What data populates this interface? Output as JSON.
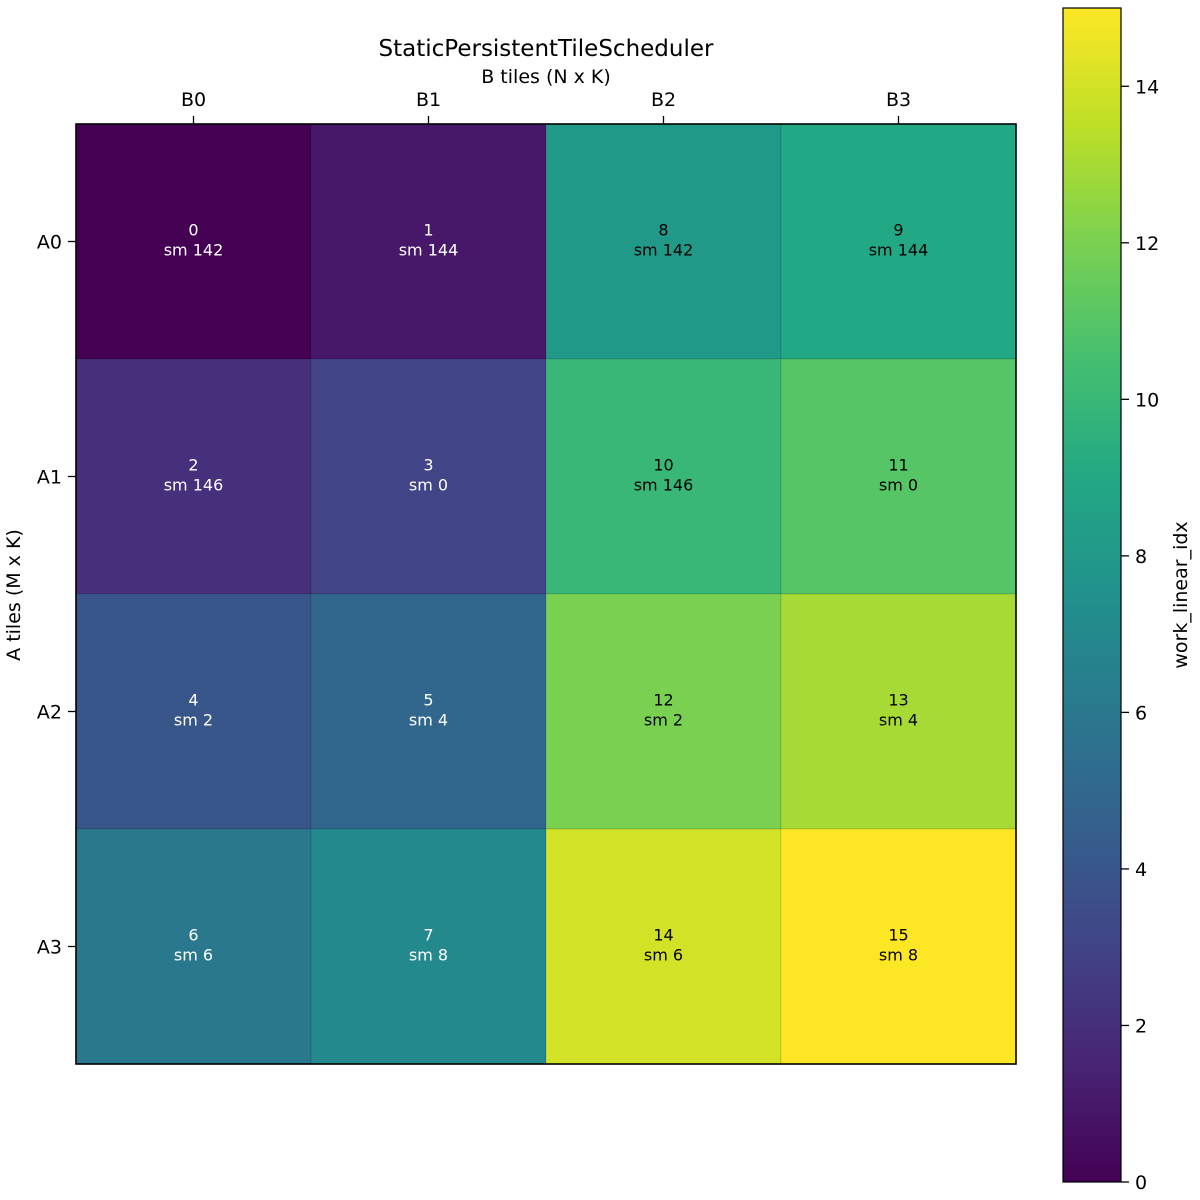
{
  "chart_data": {
    "type": "heatmap",
    "title": "StaticPersistentTileScheduler",
    "xlabel": "B tiles (N x K)",
    "ylabel": "A tiles (M x K)",
    "x_categories": [
      "B0",
      "B1",
      "B2",
      "B3"
    ],
    "y_categories": [
      "A0",
      "A1",
      "A2",
      "A3"
    ],
    "x_axis_position": "top",
    "values": [
      [
        0,
        1,
        8,
        9
      ],
      [
        2,
        3,
        10,
        11
      ],
      [
        4,
        5,
        12,
        13
      ],
      [
        6,
        7,
        14,
        15
      ]
    ],
    "cell_labels": [
      [
        {
          "idx": "0",
          "sm": "sm 142"
        },
        {
          "idx": "1",
          "sm": "sm 144"
        },
        {
          "idx": "8",
          "sm": "sm 142"
        },
        {
          "idx": "9",
          "sm": "sm 144"
        }
      ],
      [
        {
          "idx": "2",
          "sm": "sm 146"
        },
        {
          "idx": "3",
          "sm": "sm 0"
        },
        {
          "idx": "10",
          "sm": "sm 146"
        },
        {
          "idx": "11",
          "sm": "sm 0"
        }
      ],
      [
        {
          "idx": "4",
          "sm": "sm 2"
        },
        {
          "idx": "5",
          "sm": "sm 4"
        },
        {
          "idx": "12",
          "sm": "sm 2"
        },
        {
          "idx": "13",
          "sm": "sm 4"
        }
      ],
      [
        {
          "idx": "6",
          "sm": "sm 6"
        },
        {
          "idx": "7",
          "sm": "sm 8"
        },
        {
          "idx": "14",
          "sm": "sm 6"
        },
        {
          "idx": "15",
          "sm": "sm 8"
        }
      ]
    ],
    "label_colors": {
      "dark_cells": "#ffffff",
      "light_cells": "#000000"
    },
    "colormap": "viridis",
    "colorbar": {
      "label": "work_linear_idx",
      "range": [
        0,
        15
      ],
      "ticks": [
        0,
        2,
        4,
        6,
        8,
        10,
        12,
        14
      ],
      "position": "right"
    }
  }
}
